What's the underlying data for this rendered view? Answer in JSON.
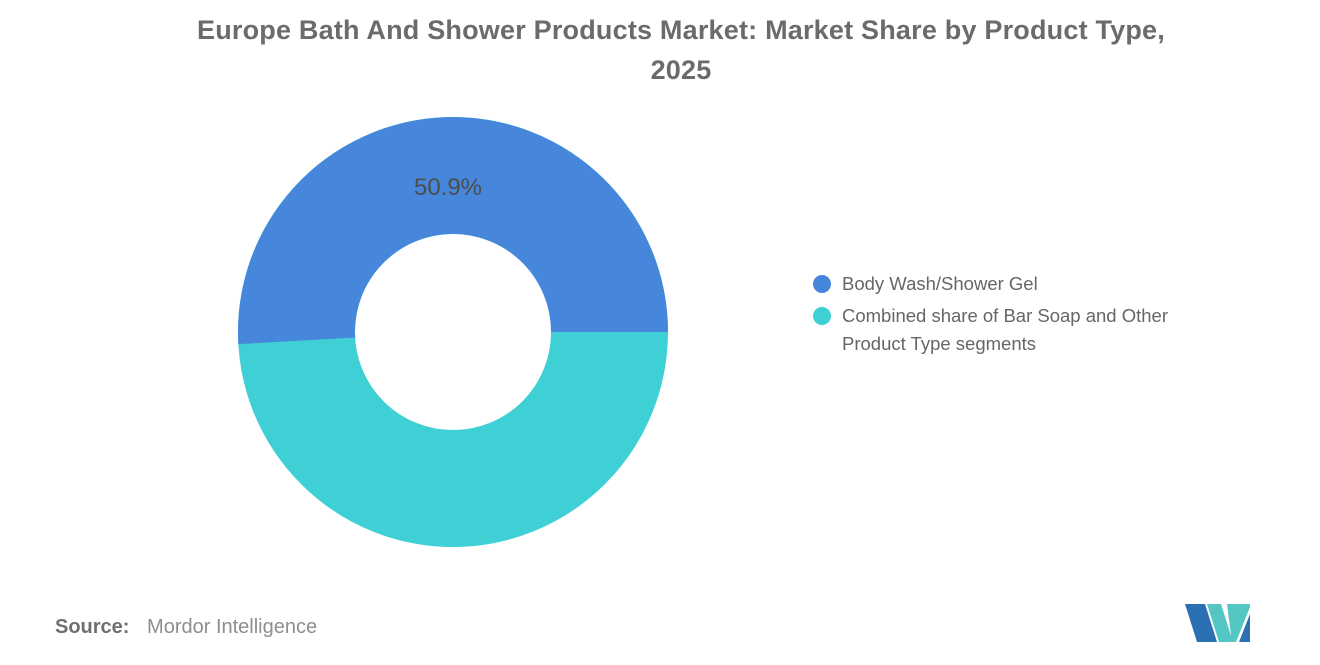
{
  "title": {
    "lines": [
      "Europe Bath And Shower Products Market: Market Share by Product Type,",
      "2025"
    ]
  },
  "chart_data": {
    "type": "pie",
    "subtype": "donut",
    "title": "Europe Bath And Shower Products Market: Market Share by Product Type, 2025",
    "slices": [
      {
        "label": "Body Wash/Shower Gel",
        "value": 50.9,
        "display_value": "50.9%",
        "color": "#4787DB"
      },
      {
        "label": "Combined share of Bar Soap and Other Product Type segments",
        "value": 49.1,
        "display_value": "",
        "color": "#3ED0D5"
      }
    ],
    "start_angle_deg": 0,
    "direction": "counterclockwise",
    "inner_radius_ratio": 0.456,
    "legend_position": "right",
    "background": "#FFFFFF"
  },
  "legend": {
    "items": [
      {
        "lines": [
          "Body Wash/Shower Gel",
          ""
        ]
      },
      {
        "lines": [
          "Combined share of Bar Soap and Other",
          "Product Type segments"
        ]
      }
    ]
  },
  "source": {
    "prefix": "Source:",
    "name": "Mordor Intelligence"
  },
  "logo": {
    "name": "mordor-intelligence-logo",
    "colors": {
      "blue": "#2B70B2",
      "teal": "#54C6C3"
    }
  }
}
